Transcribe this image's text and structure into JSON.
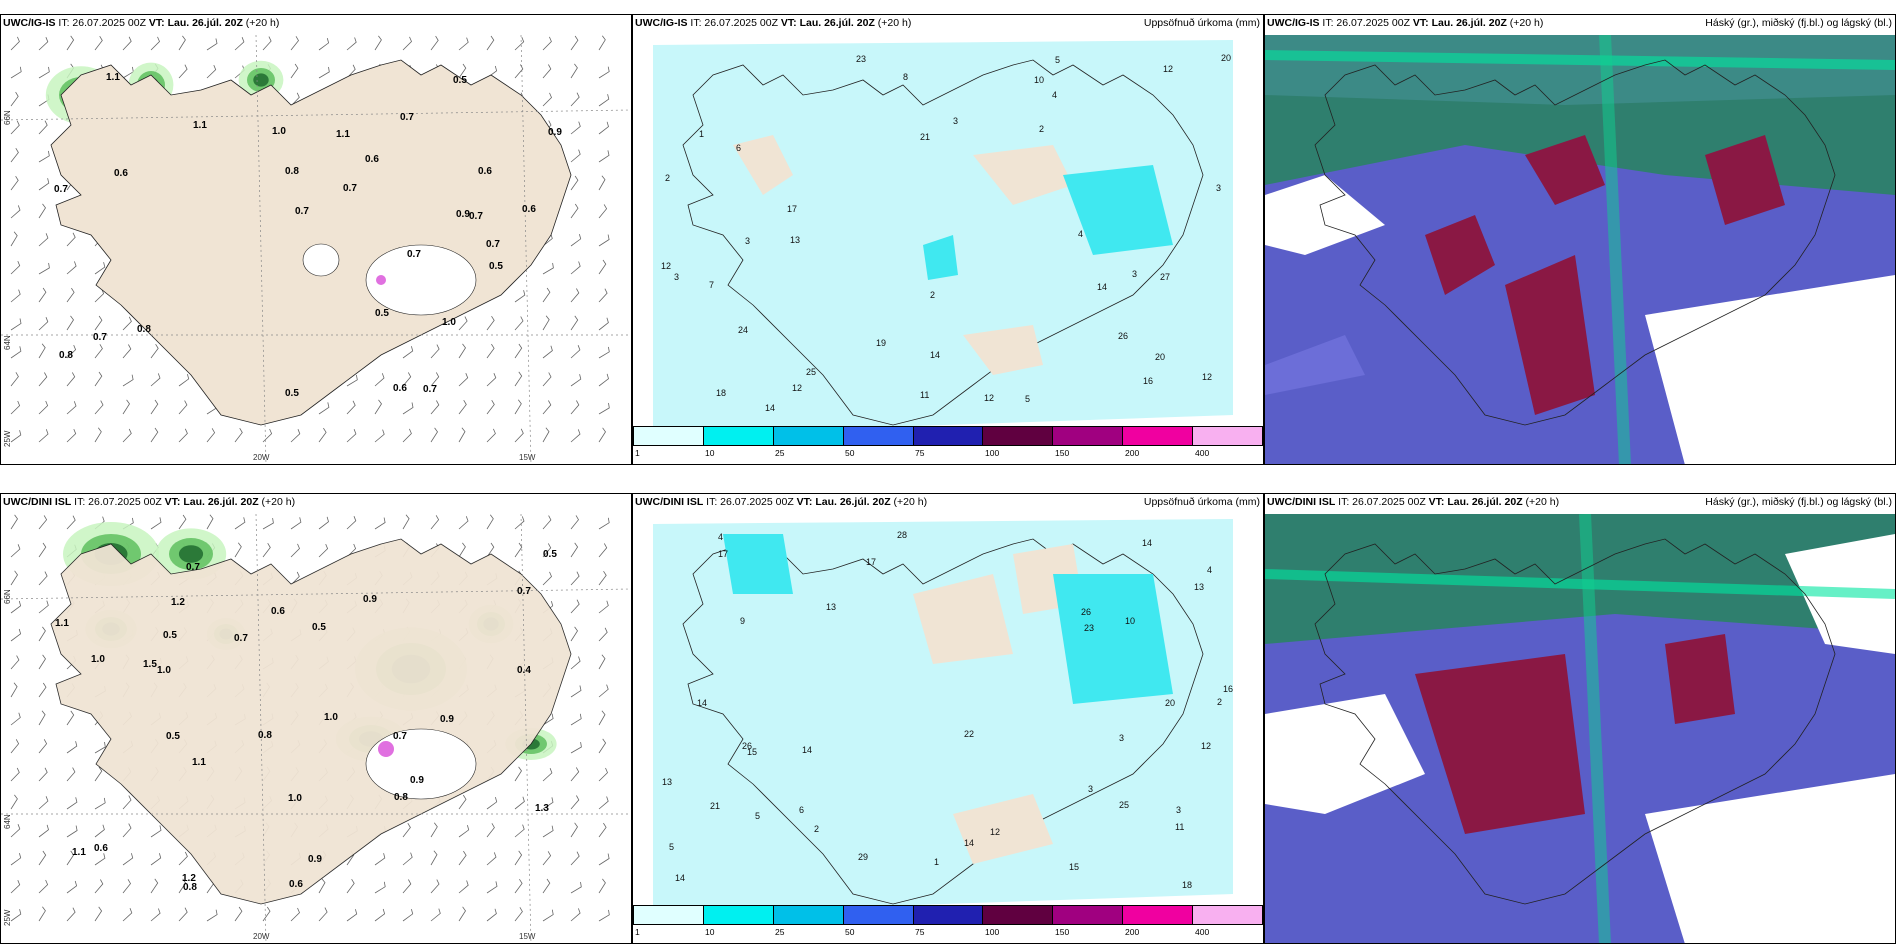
{
  "panels": [
    {
      "id": "top-left",
      "model": "UWC/IG-IS",
      "it": " IT: 26.07.2025 00Z ",
      "vt_label": "VT:",
      "vt": "Lau. 26.júl. 20Z",
      "lead": " (+20 h)",
      "right": ""
    },
    {
      "id": "top-mid",
      "model": "UWC/IG-IS",
      "it": " IT: 26.07.2025 00Z ",
      "vt_label": "VT:",
      "vt": "Lau. 26.júl. 20Z",
      "lead": " (+20 h)",
      "right": "Uppsöfnuð úrkoma (mm)"
    },
    {
      "id": "top-right",
      "model": "UWC/IG-IS",
      "it": " IT: 26.07.2025 00Z ",
      "vt_label": "VT:",
      "vt": "Lau. 26.júl. 20Z",
      "lead": " (+20 h)",
      "right": "Háský (gr.), miðský (fj.bl.) og lágský (bl.)"
    },
    {
      "id": "bot-left",
      "model": "UWC/DINI ISL",
      "it": " IT: 26.07.2025 00Z ",
      "vt_label": "VT:",
      "vt": "Lau. 26.júl. 20Z",
      "lead": " (+20 h)",
      "right": ""
    },
    {
      "id": "bot-mid",
      "model": "UWC/DINI ISL",
      "it": " IT: 26.07.2025 00Z ",
      "vt_label": "VT:",
      "vt": "Lau. 26.júl. 20Z",
      "lead": " (+20 h)",
      "right": "Uppsöfnuð úrkoma (mm)"
    },
    {
      "id": "bot-right",
      "model": "UWC/DINI ISL",
      "it": " IT: 26.07.2025 00Z ",
      "vt_label": "VT:",
      "vt": "Lau. 26.júl. 20Z",
      "lead": " (+20 h)",
      "right": "Háský (gr.), miðský (fj.bl.) og lágský (bl.)"
    }
  ],
  "axes": {
    "lat66": "66N",
    "lat64": "64N",
    "lon25": "25W",
    "lon20": "20W",
    "lon15": "15W"
  },
  "colorbar": {
    "labels": [
      "1",
      "10",
      "25",
      "50",
      "75",
      "100",
      "150",
      "200",
      "400"
    ],
    "colors": [
      "#e0ffff",
      "#00f0f0",
      "#00c0e8",
      "#3060f0",
      "#2020b0",
      "#600040",
      "#a00080",
      "#f000a0",
      "#f8b0f0"
    ]
  },
  "precip_top_labels": [
    "2",
    "3",
    "5",
    "7",
    "3",
    "3",
    "6",
    "4",
    "4",
    "12",
    "8",
    "18",
    "20",
    "19",
    "21",
    "17",
    "27",
    "24",
    "23",
    "25",
    "14",
    "12",
    "16",
    "26",
    "13",
    "20",
    "11",
    "10",
    "12",
    "14",
    "14",
    "12",
    "1",
    "3",
    "2",
    "5",
    "12",
    "2",
    "3"
  ],
  "precip_bot_labels": [
    "15",
    "14",
    "14",
    "16",
    "12",
    "14",
    "14",
    "6",
    "4",
    "5",
    "3",
    "29",
    "23",
    "25",
    "18",
    "21",
    "26",
    "26",
    "22",
    "20",
    "17",
    "28",
    "12",
    "11",
    "14",
    "15",
    "17",
    "10",
    "13",
    "13",
    "13",
    "2",
    "3",
    "4",
    "1",
    "2",
    "5",
    "3",
    "9"
  ],
  "pres_top_labels": [
    "0.6",
    "0.8",
    "0.7",
    "0.7",
    "0.5",
    "1.1",
    "0.6",
    "0.5",
    "1.0",
    "0.7",
    "0.7",
    "0.9",
    "1.1",
    "0.6",
    "0.7",
    "0.7",
    "0.6",
    "0.7",
    "0.6",
    "1.0",
    "0.7",
    "0.5",
    "0.7",
    "0.8",
    "0.9",
    "1.1",
    "0.5",
    "0.8"
  ],
  "pres_bot_labels": [
    "1.3",
    "1.0",
    "1.1",
    "1.0",
    "0.7",
    "0.9",
    "0.5",
    "0.7",
    "0.5",
    "0.7",
    "0.9",
    "1.1",
    "1.2",
    "0.6",
    "1.0",
    "0.8",
    "0.6",
    "0.7",
    "0.9",
    "1.1",
    "0.8",
    "0.4",
    "0.5",
    "0.6",
    "1.0",
    "1.5",
    "0.9",
    "0.5",
    "0.8",
    "1.2"
  ]
}
